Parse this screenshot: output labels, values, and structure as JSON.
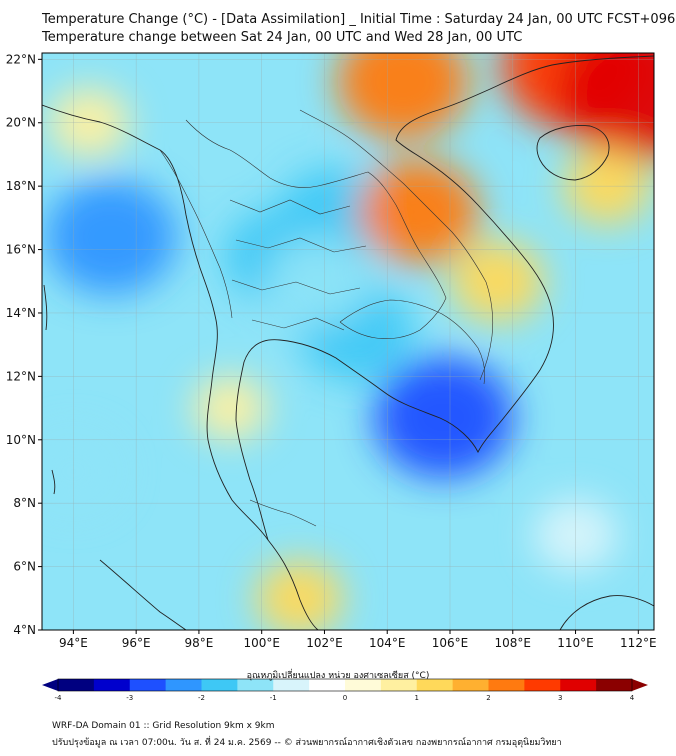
{
  "header": {
    "title_line1": "Temperature Change (°C) - [Data Assimilation] _ Initial Time : Saturday 24 Jan, 00 UTC FCST+096",
    "title_line2": "Temperature change between Sat 24 Jan, 00 UTC and Wed 28 Jan, 00 UTC"
  },
  "map": {
    "lon_range": [
      93,
      112.5
    ],
    "lat_range": [
      4,
      22.2
    ],
    "lon_ticks": [
      94,
      96,
      98,
      100,
      102,
      104,
      106,
      108,
      110,
      112
    ],
    "lon_tick_labels": [
      "94°E",
      "96°E",
      "98°E",
      "100°E",
      "102°E",
      "104°E",
      "106°E",
      "108°E",
      "110°E",
      "112°E"
    ],
    "lat_ticks": [
      4,
      6,
      8,
      10,
      12,
      14,
      16,
      18,
      20,
      22
    ],
    "lat_tick_labels": [
      "4°N",
      "6°N",
      "8°N",
      "10°N",
      "12°N",
      "14°N",
      "16°N",
      "18°N",
      "20°N",
      "22°N"
    ],
    "grid": true
  },
  "colorbar": {
    "title": "อุณหภูมิเปลี่ยนแปลง หน่วย องศาเซลเซียส (°C)",
    "min": -4,
    "max": 4,
    "ticks": [
      -4,
      -3,
      -2,
      -1,
      0,
      1,
      2,
      3,
      4
    ],
    "tick_labels": [
      "-4",
      "-3",
      "-2",
      "-1",
      "0",
      "1",
      "2",
      "3",
      "4"
    ],
    "colors": [
      "#000080",
      "#0000cd",
      "#1e50ff",
      "#2f96ff",
      "#3ec8f5",
      "#8ee4f8",
      "#d8f4fb",
      "#ffffff",
      "#fffbd8",
      "#fff0a0",
      "#ffd95a",
      "#ffb030",
      "#ff7a10",
      "#ff3a00",
      "#e00000",
      "#8b0000"
    ]
  },
  "field_anomalies": [
    {
      "lon": 95.2,
      "lat": 16.4,
      "value": -2.4
    },
    {
      "lon": 102.3,
      "lat": 17.0,
      "value": -1.8
    },
    {
      "lon": 100.5,
      "lat": 15.8,
      "value": -1.6
    },
    {
      "lon": 103.0,
      "lat": 13.4,
      "value": -1.8
    },
    {
      "lon": 105.8,
      "lat": 10.7,
      "value": -2.6
    },
    {
      "lon": 101.8,
      "lat": 15.0,
      "value": -1.5
    },
    {
      "lon": 94.0,
      "lat": 9.0,
      "value": -1.2
    },
    {
      "lon": 110.0,
      "lat": 7.0,
      "value": -0.9
    },
    {
      "lon": 104.5,
      "lat": 21.3,
      "value": 2.4
    },
    {
      "lon": 110.0,
      "lat": 21.8,
      "value": 2.9
    },
    {
      "lon": 112.0,
      "lat": 21.0,
      "value": 3.3
    },
    {
      "lon": 105.0,
      "lat": 17.2,
      "value": 2.0
    },
    {
      "lon": 107.5,
      "lat": 15.0,
      "value": 1.2
    },
    {
      "lon": 94.5,
      "lat": 20.0,
      "value": 0.8
    },
    {
      "lon": 101.2,
      "lat": 5.0,
      "value": 1.0
    },
    {
      "lon": 111.0,
      "lat": 18.0,
      "value": 1.0
    },
    {
      "lon": 99.0,
      "lat": 11.0,
      "value": 0.6
    }
  ],
  "footer": {
    "line1": "WRF-DA Domain 01 :: Grid Resolution 9km x 9km",
    "line2": "ปรับปรุงข้อมูล ณ เวลา 07:00น. วัน ส. ที่ 24 ม.ค. 2569 -- © ส่วนพยากรณ์อากาศเชิงตัวเลข กองพยากรณ์อากาศ กรมอุตุนิยมวิทยา"
  }
}
